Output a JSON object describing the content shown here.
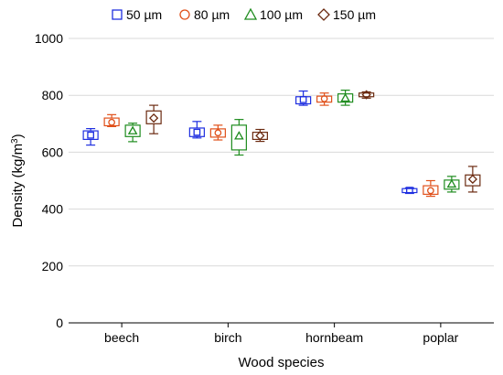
{
  "chart_data": {
    "type": "boxplot",
    "xlabel": "Wood species",
    "ylabel_main": "Density (kg/m",
    "ylabel_sup": "3",
    "ylabel_end": ")",
    "ylim": [
      0,
      1000
    ],
    "yticks": [
      0,
      200,
      400,
      600,
      800,
      1000
    ],
    "grid": true,
    "legend_position": "top",
    "categories": [
      "beech",
      "birch",
      "hornbeam",
      "poplar"
    ],
    "series": [
      {
        "name": "50 µm",
        "color": "#1f2fe0",
        "marker": "square",
        "boxes": [
          {
            "min": 625,
            "q1": 645,
            "median": 660,
            "q3": 675,
            "max": 683
          },
          {
            "min": 650,
            "q1": 655,
            "median": 670,
            "q3": 685,
            "max": 708
          },
          {
            "min": 765,
            "q1": 770,
            "median": 785,
            "q3": 795,
            "max": 815
          },
          {
            "min": 455,
            "q1": 458,
            "median": 466,
            "q3": 472,
            "max": 475
          }
        ]
      },
      {
        "name": "80 µm",
        "color": "#e0501a",
        "marker": "circle",
        "boxes": [
          {
            "min": 690,
            "q1": 693,
            "median": 705,
            "q3": 720,
            "max": 732
          },
          {
            "min": 643,
            "q1": 653,
            "median": 668,
            "q3": 682,
            "max": 695
          },
          {
            "min": 765,
            "q1": 776,
            "median": 788,
            "q3": 797,
            "max": 808
          },
          {
            "min": 445,
            "q1": 452,
            "median": 465,
            "q3": 482,
            "max": 500
          }
        ]
      },
      {
        "name": "100 µm",
        "color": "#1e8c1e",
        "marker": "triangle",
        "boxes": [
          {
            "min": 637,
            "q1": 655,
            "median": 675,
            "q3": 695,
            "max": 702
          },
          {
            "min": 590,
            "q1": 608,
            "median": 657,
            "q3": 695,
            "max": 715
          },
          {
            "min": 765,
            "q1": 776,
            "median": 790,
            "q3": 805,
            "max": 818
          },
          {
            "min": 460,
            "q1": 470,
            "median": 488,
            "q3": 502,
            "max": 515
          }
        ]
      },
      {
        "name": "150 µm",
        "color": "#6b2a10",
        "marker": "diamond",
        "boxes": [
          {
            "min": 665,
            "q1": 700,
            "median": 720,
            "q3": 745,
            "max": 765
          },
          {
            "min": 638,
            "q1": 645,
            "median": 658,
            "q3": 670,
            "max": 680
          },
          {
            "min": 790,
            "q1": 795,
            "median": 802,
            "q3": 808,
            "max": 812
          },
          {
            "min": 460,
            "q1": 482,
            "median": 505,
            "q3": 520,
            "max": 550
          }
        ]
      }
    ]
  }
}
